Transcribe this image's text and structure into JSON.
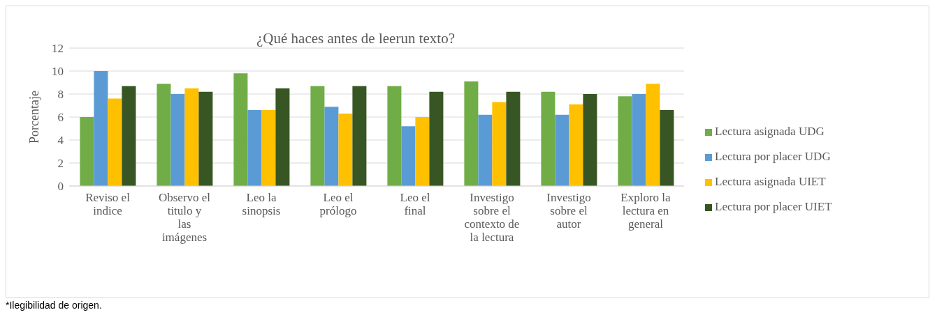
{
  "chart_data": {
    "type": "bar",
    "title": "¿Qué haces antes de leerun texto?",
    "ylabel": "Porcentaje",
    "categories": [
      "Reviso el indice",
      "Observo el titulo y las imágenes",
      "Leo la sinopsis",
      "Leo el prólogo",
      "Leo el final",
      "Investigo sobre el contexto de la lectura",
      "Investigo sobre el autor",
      "Exploro la lectura en general"
    ],
    "series": [
      {
        "name": "Lectura asignada UDG",
        "color": "#70ad47",
        "values": [
          6.0,
          8.9,
          9.8,
          8.7,
          8.7,
          9.1,
          8.2,
          7.8
        ]
      },
      {
        "name": "Lectura por placer UDG",
        "color": "#5b9bd5",
        "values": [
          10.0,
          8.0,
          6.6,
          6.9,
          5.2,
          6.2,
          6.2,
          8.0
        ]
      },
      {
        "name": "Lectura asignada UIET",
        "color": "#ffc000",
        "values": [
          7.6,
          8.5,
          6.6,
          6.3,
          6.0,
          7.3,
          7.1,
          8.9
        ]
      },
      {
        "name": "Lectura por placer UIET",
        "color": "#375623",
        "values": [
          8.7,
          8.2,
          8.5,
          8.7,
          8.2,
          8.2,
          8.0,
          6.6
        ]
      }
    ],
    "ylim": [
      0,
      12
    ],
    "yticks": [
      0,
      2,
      4,
      6,
      8,
      10,
      12
    ],
    "grid": "y",
    "legend": "right",
    "annotations": [
      "*Ilegibilidad de origen."
    ]
  }
}
